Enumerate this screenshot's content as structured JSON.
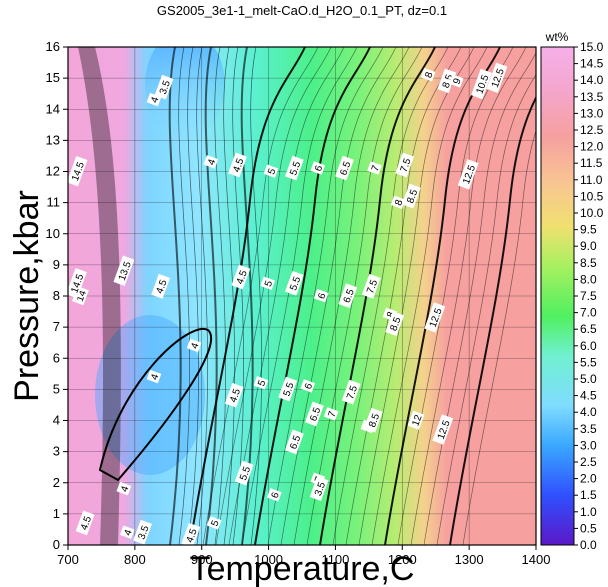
{
  "chart_data": {
    "type": "heatmap",
    "title": "GS2005_3e1-1_melt-CaO.d_H2O_0.1_PT, dz=0.1",
    "xlabel": "Temperature,C",
    "ylabel": "Pressure,kbar",
    "xlim": [
      700,
      1400
    ],
    "ylim": [
      0,
      16
    ],
    "x_ticks": [
      700,
      800,
      900,
      1000,
      1100,
      1200,
      1300,
      1400
    ],
    "y_ticks": [
      0,
      1,
      2,
      3,
      4,
      5,
      6,
      7,
      8,
      9,
      10,
      11,
      12,
      13,
      14,
      15,
      16
    ],
    "grid": true,
    "colorbar": {
      "label": "wt%",
      "min": 0.0,
      "max": 15.0,
      "ticks": [
        "0.0",
        "0.5",
        "1.0",
        "1.5",
        "2.0",
        "2.5",
        "3.0",
        "3.5",
        "4.0",
        "4.5",
        "5.0",
        "5.5",
        "6.0",
        "6.5",
        "7.0",
        "7.5",
        "8.0",
        "8.5",
        "9.0",
        "9.5",
        "10.0",
        "10.5",
        "11.0",
        "11.5",
        "12.0",
        "12.5",
        "13.0",
        "13.5",
        "14.0",
        "14.5",
        "15.0"
      ]
    },
    "contour_labels": [
      {
        "text": "14.5",
        "T": 715,
        "P": 12.0
      },
      {
        "text": "14",
        "T": 720,
        "P": 8.0
      },
      {
        "text": "14.5",
        "T": 714,
        "P": 8.4
      },
      {
        "text": "13.5",
        "T": 785,
        "P": 8.8
      },
      {
        "text": "4.5",
        "T": 840,
        "P": 8.3
      },
      {
        "text": "4",
        "T": 830,
        "P": 14.3
      },
      {
        "text": "3.5",
        "T": 845,
        "P": 14.7
      },
      {
        "text": "4",
        "T": 915,
        "P": 12.3
      },
      {
        "text": "4.5",
        "T": 955,
        "P": 12.2
      },
      {
        "text": "5",
        "T": 1005,
        "P": 12.0
      },
      {
        "text": "5.5",
        "T": 1040,
        "P": 12.1
      },
      {
        "text": "6",
        "T": 1075,
        "P": 12.1
      },
      {
        "text": "6.5",
        "T": 1115,
        "P": 12.1
      },
      {
        "text": "7",
        "T": 1160,
        "P": 12.1
      },
      {
        "text": "7.5",
        "T": 1205,
        "P": 12.2
      },
      {
        "text": "8",
        "T": 1240,
        "P": 15.1
      },
      {
        "text": "8.5",
        "T": 1268,
        "P": 14.9
      },
      {
        "text": "9",
        "T": 1282,
        "P": 14.9
      },
      {
        "text": "10.5",
        "T": 1320,
        "P": 14.8
      },
      {
        "text": "12.5",
        "T": 1343,
        "P": 15.0
      },
      {
        "text": "12.5",
        "T": 1300,
        "P": 11.9
      },
      {
        "text": "8",
        "T": 1195,
        "P": 11.0
      },
      {
        "text": "8.5",
        "T": 1215,
        "P": 11.2
      },
      {
        "text": "4.5",
        "T": 960,
        "P": 8.6
      },
      {
        "text": "5",
        "T": 1000,
        "P": 8.4
      },
      {
        "text": "5.5",
        "T": 1040,
        "P": 8.4
      },
      {
        "text": "6",
        "T": 1080,
        "P": 8.0
      },
      {
        "text": "6.5",
        "T": 1120,
        "P": 8.0
      },
      {
        "text": "7.5",
        "T": 1155,
        "P": 8.3
      },
      {
        "text": "8",
        "T": 1183,
        "P": 7.4
      },
      {
        "text": "8.5",
        "T": 1190,
        "P": 7.1
      },
      {
        "text": "12.5",
        "T": 1250,
        "P": 7.3
      },
      {
        "text": "4",
        "T": 890,
        "P": 6.4
      },
      {
        "text": "4",
        "T": 830,
        "P": 5.4
      },
      {
        "text": "4.5",
        "T": 950,
        "P": 4.8
      },
      {
        "text": "5",
        "T": 990,
        "P": 5.2
      },
      {
        "text": "5.5",
        "T": 1030,
        "P": 5.0
      },
      {
        "text": "6",
        "T": 1060,
        "P": 5.1
      },
      {
        "text": "6.5",
        "T": 1070,
        "P": 4.2
      },
      {
        "text": "7",
        "T": 1095,
        "P": 4.2
      },
      {
        "text": "7.5",
        "T": 1125,
        "P": 4.9
      },
      {
        "text": "8",
        "T": 1150,
        "P": 3.8
      },
      {
        "text": "8.5",
        "T": 1158,
        "P": 4.0
      },
      {
        "text": "12",
        "T": 1222,
        "P": 4.0
      },
      {
        "text": "12.5",
        "T": 1262,
        "P": 3.7
      },
      {
        "text": "6.5",
        "T": 1040,
        "P": 3.3
      },
      {
        "text": "7",
        "T": 1075,
        "P": 2.1
      },
      {
        "text": "3.5",
        "T": 1077,
        "P": 1.8
      },
      {
        "text": "5.5",
        "T": 965,
        "P": 2.3
      },
      {
        "text": "6",
        "T": 1010,
        "P": 1.6
      },
      {
        "text": "5",
        "T": 920,
        "P": 0.7
      },
      {
        "text": "4",
        "T": 785,
        "P": 1.8
      },
      {
        "text": "4.5",
        "T": 727,
        "P": 0.7
      },
      {
        "text": "4",
        "T": 790,
        "P": 0.4
      },
      {
        "text": "3.5",
        "T": 813,
        "P": 0.4
      },
      {
        "text": "4.5",
        "T": 885,
        "P": 0.3
      }
    ]
  }
}
